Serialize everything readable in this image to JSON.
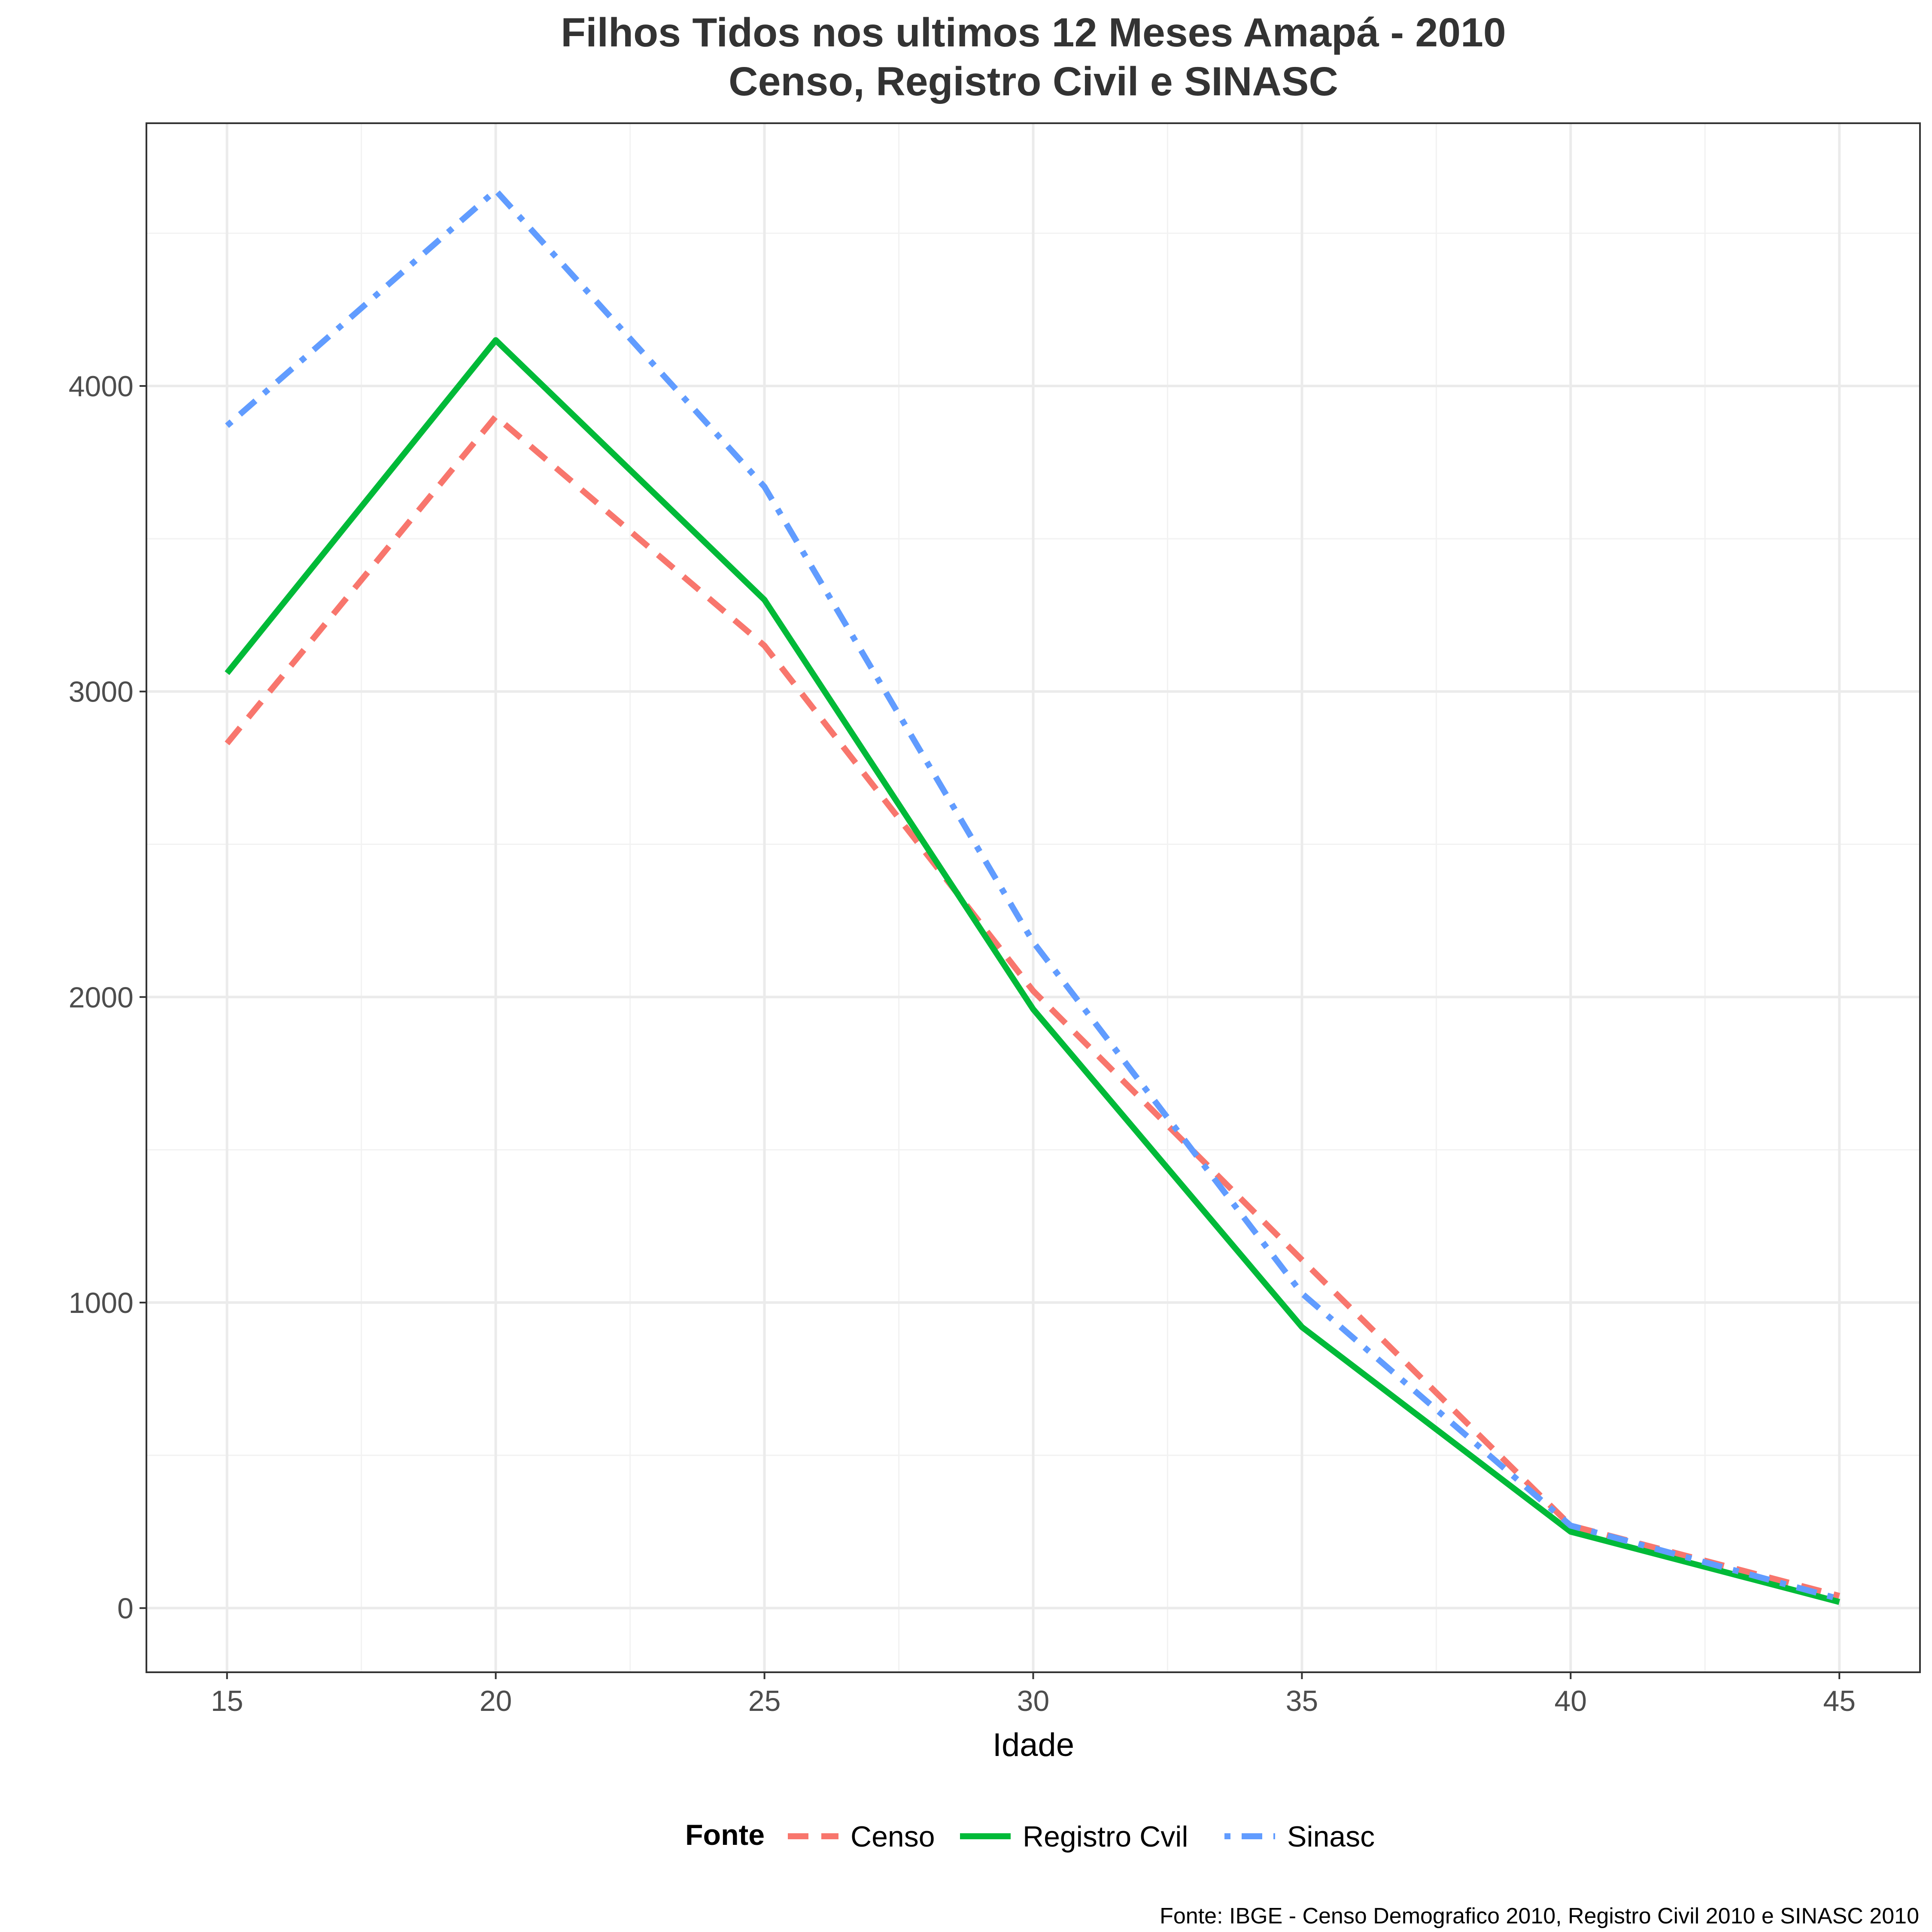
{
  "chart_data": {
    "type": "line",
    "title": "Filhos Tidos nos ultimos 12 Meses Amapá - 2010",
    "subtitle": "Censo, Registro Civil e SINASC",
    "xlabel": "Idade",
    "ylabel": "",
    "x": [
      15,
      20,
      25,
      30,
      35,
      40,
      45
    ],
    "xticks": [
      15,
      20,
      25,
      30,
      35,
      40,
      45
    ],
    "yticks": [
      0,
      1000,
      2000,
      3000,
      4000
    ],
    "xlim": [
      13.5,
      46.5
    ],
    "ylim": [
      -210,
      4860
    ],
    "grid": true,
    "legend": {
      "title": "Fonte",
      "position": "bottom"
    },
    "series": [
      {
        "name": "Censo",
        "color": "#F8766D",
        "dash": "dashed",
        "values": [
          2830,
          3900,
          3150,
          2020,
          1140,
          270,
          40
        ]
      },
      {
        "name": "Registro Cvil",
        "color": "#00BA38",
        "dash": "solid",
        "values": [
          3060,
          4150,
          3300,
          1960,
          920,
          250,
          20
        ]
      },
      {
        "name": "Sinasc",
        "color": "#619CFF",
        "dash": "dotdash",
        "values": [
          3870,
          4640,
          3670,
          2180,
          1030,
          270,
          30
        ]
      }
    ],
    "caption": "Fonte: IBGE - Censo Demografico 2010, Registro Civil 2010 e SINASC 2010"
  }
}
